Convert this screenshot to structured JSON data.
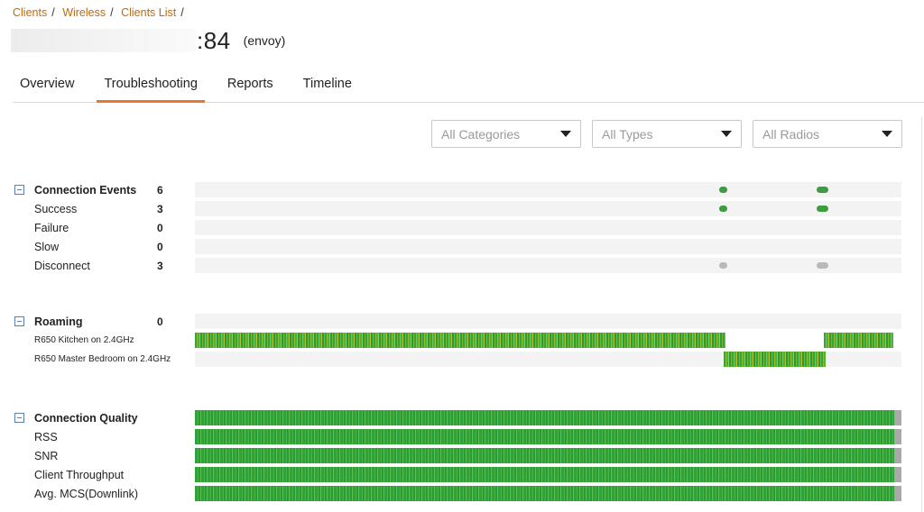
{
  "breadcrumb": {
    "items": [
      "Clients",
      "Wireless",
      "Clients List"
    ],
    "trailing": "/"
  },
  "title": {
    "suffix": ":84",
    "sub": "(envoy)"
  },
  "tabs": [
    {
      "label": "Overview",
      "active": false
    },
    {
      "label": "Troubleshooting",
      "active": true
    },
    {
      "label": "Reports",
      "active": false
    },
    {
      "label": "Timeline",
      "active": false
    }
  ],
  "filters": {
    "categories": "All Categories",
    "types": "All Types",
    "radios": "All Radios"
  },
  "connection_events": {
    "title": "Connection Events",
    "count": "6",
    "rows": [
      {
        "label": "Success",
        "count": "3"
      },
      {
        "label": "Failure",
        "count": "0"
      },
      {
        "label": "Slow",
        "count": "0"
      },
      {
        "label": "Disconnect",
        "count": "3"
      }
    ]
  },
  "roaming": {
    "title": "Roaming",
    "count": "0",
    "rows": [
      {
        "label": "R650 Kitchen on 2.4GHz"
      },
      {
        "label": "R650 Master Bedroom on 2.4GHz"
      }
    ]
  },
  "connection_quality": {
    "title": "Connection Quality",
    "rows": [
      {
        "label": "RSS"
      },
      {
        "label": "SNR"
      },
      {
        "label": "Client Throughput"
      },
      {
        "label": "Avg. MCS(Downlink)"
      }
    ]
  },
  "colors": {
    "accent": "#e8792a",
    "link": "#c06a0a",
    "success": "#3c9d3c",
    "disconnect": "#b9b9b9",
    "collapse": "#5b7fb0"
  }
}
